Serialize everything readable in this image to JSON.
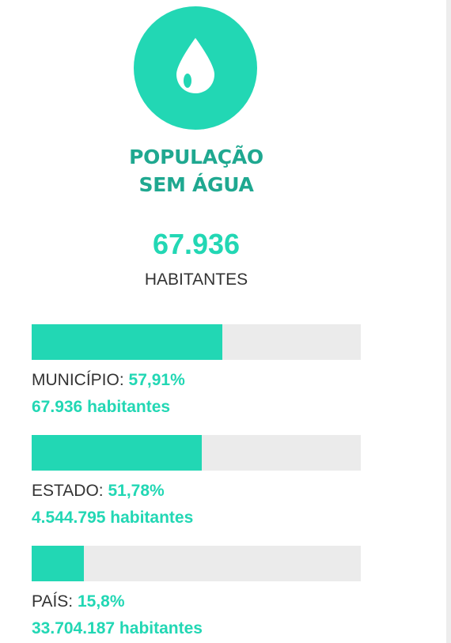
{
  "header": {
    "icon": "water-drop-icon",
    "title_line1": "POPULAÇÃO",
    "title_line2": "SEM ÁGUA"
  },
  "summary": {
    "value": "67.936",
    "unit": "HABITANTES"
  },
  "colors": {
    "accent": "#22d7b4",
    "title": "#1fa890",
    "track": "#ebebeb",
    "text": "#333333"
  },
  "stats": [
    {
      "label": "MUNICÍPIO:",
      "percent_text": "57,91%",
      "percent": 57.91,
      "count_text": "67.936 habitantes"
    },
    {
      "label": "ESTADO:",
      "percent_text": "51,78%",
      "percent": 51.78,
      "count_text": "4.544.795 habitantes"
    },
    {
      "label": "PAÍS:",
      "percent_text": "15,8%",
      "percent": 15.8,
      "count_text": "33.704.187 habitantes"
    }
  ]
}
